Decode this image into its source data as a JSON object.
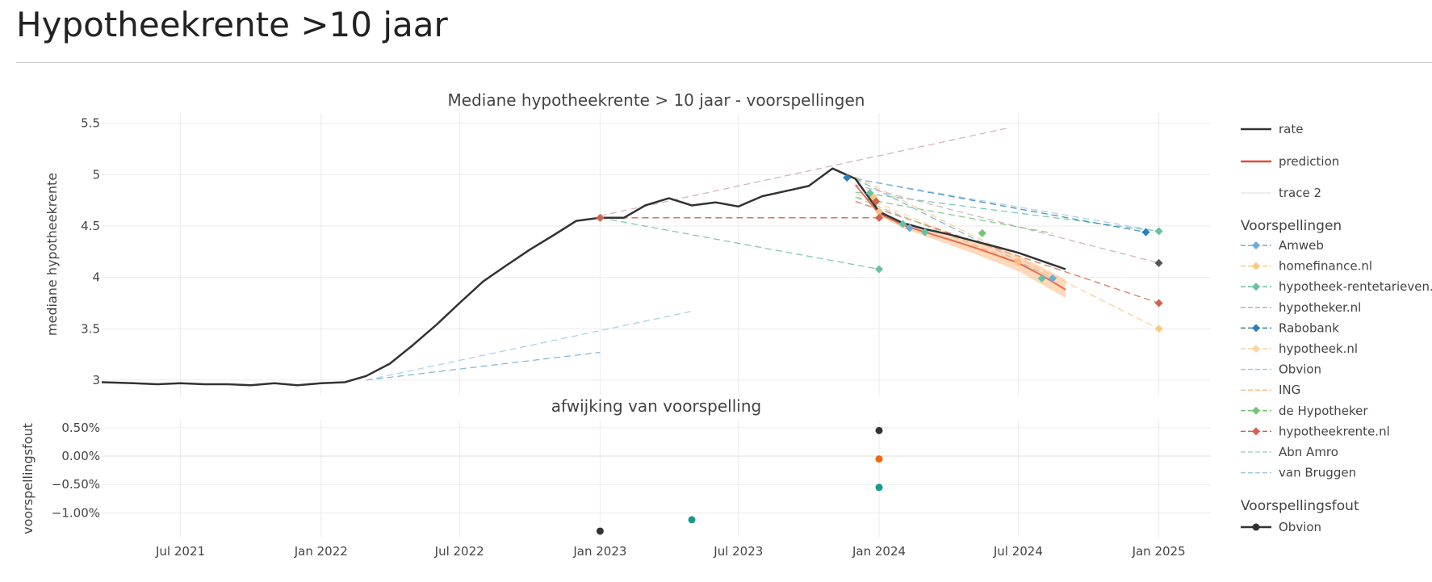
{
  "page": {
    "title": "Hypotheekrente >10 jaar"
  },
  "colors": {
    "rate": "#333333",
    "prediction": "#e34a33",
    "trace2": "#dcdcdc",
    "Amweb": "#6baed6",
    "homefinance.nl": "#f9c97c",
    "hypotheek-rentetarieven.nl": "#66c2a4",
    "hypotheker.nl": "#c9a9b0",
    "Rabobank": "#2c7fb8",
    "hypotheek.nl": "#fdd49e",
    "Obvion": "#9ecae1",
    "ING": "#fdbb84",
    "de Hypotheker": "#74c476",
    "hypotheekrente.nl": "#d6604d",
    "Abn Amro": "#a1d9c4",
    "van Bruggen": "#9ecae1",
    "err_black": "#333333",
    "err_orange": "#f16913",
    "err_teal": "#1a9a8c"
  },
  "chart_data": [
    {
      "type": "line",
      "title": "Mediane hypotheekrente > 10 jaar - voorspellingen",
      "ylabel": "mediane hypotheekrente",
      "xlabel": "",
      "ylim": [
        2.85,
        5.6
      ],
      "xlim": [
        "2021-03-20",
        "2025-03-10"
      ],
      "grid": true,
      "legend_position": "right",
      "x_ticks": [
        {
          "date": "2021-07-01",
          "label": "Jul 2021"
        },
        {
          "date": "2022-01-01",
          "label": "Jan 2022"
        },
        {
          "date": "2022-07-01",
          "label": "Jul 2022"
        },
        {
          "date": "2023-01-01",
          "label": "Jan 2023"
        },
        {
          "date": "2023-07-01",
          "label": "Jul 2023"
        },
        {
          "date": "2024-01-01",
          "label": "Jan 2024"
        },
        {
          "date": "2024-07-01",
          "label": "Jul 2024"
        },
        {
          "date": "2025-01-01",
          "label": "Jan 2025"
        }
      ],
      "y_ticks": [
        {
          "value": 3,
          "label": "3"
        },
        {
          "value": 3.5,
          "label": "3.5"
        },
        {
          "value": 4,
          "label": "4"
        },
        {
          "value": 4.5,
          "label": "4.5"
        },
        {
          "value": 5,
          "label": "5"
        },
        {
          "value": 5.5,
          "label": "5.5"
        }
      ],
      "rate": {
        "name": "rate",
        "x": [
          "2021-03-20",
          "2021-05-01",
          "2021-06-01",
          "2021-07-01",
          "2021-08-01",
          "2021-09-01",
          "2021-10-01",
          "2021-11-01",
          "2021-12-01",
          "2022-01-01",
          "2022-02-01",
          "2022-03-01",
          "2022-04-01",
          "2022-05-01",
          "2022-06-01",
          "2022-07-01",
          "2022-08-01",
          "2022-09-01",
          "2022-10-01",
          "2022-11-01",
          "2022-12-01",
          "2023-01-01",
          "2023-02-01",
          "2023-03-01",
          "2023-04-01",
          "2023-05-01",
          "2023-06-01",
          "2023-07-01",
          "2023-08-01",
          "2023-09-01",
          "2023-10-01",
          "2023-11-01",
          "2023-12-01",
          "2024-01-01",
          "2024-02-01",
          "2024-03-01",
          "2024-04-01",
          "2024-05-01",
          "2024-06-01",
          "2024-07-01",
          "2024-08-01",
          "2024-09-01"
        ],
        "y": [
          2.98,
          2.97,
          2.96,
          2.97,
          2.96,
          2.96,
          2.95,
          2.97,
          2.95,
          2.97,
          2.98,
          3.04,
          3.16,
          3.34,
          3.54,
          3.75,
          3.96,
          4.12,
          4.27,
          4.41,
          4.55,
          4.58,
          4.58,
          4.7,
          4.77,
          4.7,
          4.73,
          4.69,
          4.79,
          4.84,
          4.89,
          5.06,
          4.96,
          4.64,
          4.53,
          4.47,
          4.42,
          4.36,
          4.3,
          4.24,
          4.16,
          4.08
        ]
      },
      "prediction": {
        "name": "prediction",
        "x": [
          "2023-12-01",
          "2024-01-01",
          "2024-02-01",
          "2024-03-01",
          "2024-04-01",
          "2024-05-01",
          "2024-06-01",
          "2024-07-01",
          "2024-08-01",
          "2024-09-01"
        ],
        "y": [
          4.9,
          4.62,
          4.51,
          4.44,
          4.37,
          4.3,
          4.22,
          4.14,
          4.02,
          3.88
        ],
        "band_upper": [
          4.9,
          4.64,
          4.54,
          4.48,
          4.42,
          4.36,
          4.29,
          4.21,
          4.1,
          3.98
        ],
        "band_lower": [
          4.9,
          4.6,
          4.48,
          4.4,
          4.32,
          4.24,
          4.15,
          4.06,
          3.93,
          3.8
        ]
      },
      "trace2_label": "trace 2",
      "forecast_group_title": "Voorspellingen",
      "forecasts": [
        {
          "name": "Amweb",
          "segments": [
            {
              "x": [
                "2023-12-01",
                "2024-08-15"
              ],
              "y": [
                4.96,
                3.99
              ]
            },
            {
              "x": [
                "2022-03-01",
                "2023-01-01"
              ],
              "y": [
                3.0,
                3.27
              ]
            }
          ]
        },
        {
          "name": "homefinance.nl",
          "segments": [
            {
              "x": [
                "2023-12-01",
                "2025-01-01"
              ],
              "y": [
                4.98,
                3.5
              ]
            }
          ]
        },
        {
          "name": "hypotheek-rentetarieven.nl",
          "segments": [
            {
              "x": [
                "2023-01-01",
                "2024-01-01"
              ],
              "y": [
                4.58,
                4.08
              ]
            },
            {
              "x": [
                "2023-12-01",
                "2025-01-01"
              ],
              "y": [
                4.83,
                4.45
              ]
            }
          ]
        },
        {
          "name": "hypotheker.nl",
          "segments": [
            {
              "x": [
                "2023-01-01",
                "2024-06-15"
              ],
              "y": [
                4.6,
                5.45
              ]
            },
            {
              "x": [
                "2023-12-01",
                "2025-01-01"
              ],
              "y": [
                4.9,
                4.14
              ]
            }
          ]
        },
        {
          "name": "Rabobank",
          "segments": [
            {
              "x": [
                "2023-12-01",
                "2024-12-15"
              ],
              "y": [
                4.96,
                4.44
              ]
            }
          ]
        },
        {
          "name": "hypotheek.nl",
          "segments": [
            {
              "x": [
                "2023-12-01",
                "2024-04-01"
              ],
              "y": [
                4.82,
                4.43
              ]
            }
          ]
        },
        {
          "name": "Obvion",
          "segments": [
            {
              "x": [
                "2022-03-01",
                "2023-05-01"
              ],
              "y": [
                3.0,
                3.67
              ]
            }
          ]
        },
        {
          "name": "ING",
          "segments": [
            {
              "x": [
                "2023-12-01",
                "2024-07-01"
              ],
              "y": [
                4.78,
                4.15
              ]
            }
          ]
        },
        {
          "name": "de Hypotheker",
          "segments": [
            {
              "x": [
                "2023-01-01",
                "2024-01-01"
              ],
              "y": [
                4.58,
                4.58
              ]
            },
            {
              "x": [
                "2023-12-01",
                "2024-08-15"
              ],
              "y": [
                4.78,
                4.43
              ]
            }
          ]
        },
        {
          "name": "hypotheekrente.nl",
          "segments": [
            {
              "x": [
                "2023-01-01",
                "2024-01-01"
              ],
              "y": [
                4.58,
                4.58
              ]
            },
            {
              "x": [
                "2023-12-01",
                "2025-01-01"
              ],
              "y": [
                4.74,
                3.75
              ]
            }
          ]
        },
        {
          "name": "Abn Amro",
          "segments": [
            {
              "x": [
                "2023-12-01",
                "2024-08-15"
              ],
              "y": [
                4.78,
                4.0
              ]
            }
          ]
        },
        {
          "name": "van Bruggen",
          "segments": [
            {
              "x": [
                "2023-12-01",
                "2025-01-01"
              ],
              "y": [
                4.96,
                4.45
              ]
            }
          ]
        }
      ],
      "markers": [
        {
          "series": "hypotheek-rentetarieven.nl",
          "x": "2023-01-01",
          "y": 4.58
        },
        {
          "series": "hypotheekrente.nl",
          "x": "2023-01-01",
          "y": 4.58
        },
        {
          "series": "Rabobank",
          "x": "2023-11-20",
          "y": 4.97
        },
        {
          "series": "hypotheek-rentetarieven.nl",
          "x": "2023-12-20",
          "y": 4.82
        },
        {
          "series": "homefinance.nl",
          "x": "2023-12-25",
          "y": 4.78
        },
        {
          "series": "hypotheekrente.nl",
          "x": "2023-12-28",
          "y": 4.74
        },
        {
          "series": "ING",
          "x": "2024-01-01",
          "y": 4.64
        },
        {
          "series": "hypotheekrente.nl",
          "x": "2024-01-01",
          "y": 4.58
        },
        {
          "series": "hypotheek-rentetarieven.nl",
          "x": "2024-01-01",
          "y": 4.08
        },
        {
          "series": "hypotheek-rentetarieven.nl",
          "x": "2024-02-01",
          "y": 4.52
        },
        {
          "series": "Amweb",
          "x": "2024-02-10",
          "y": 4.48
        },
        {
          "series": "hypotheek-rentetarieven.nl",
          "x": "2024-03-01",
          "y": 4.44
        },
        {
          "series": "de Hypotheker",
          "x": "2024-05-15",
          "y": 4.43
        },
        {
          "series": "ING",
          "x": "2024-07-01",
          "y": 4.15
        },
        {
          "series": "hypotheek-rentetarieven.nl",
          "x": "2024-08-01",
          "y": 3.99
        },
        {
          "series": "Amweb",
          "x": "2024-08-15",
          "y": 3.99
        },
        {
          "series": "Rabobank",
          "x": "2024-12-15",
          "y": 4.44
        },
        {
          "series": "hypotheek-rentetarieven.nl",
          "x": "2025-01-01",
          "y": 4.45
        },
        {
          "series": "hypotheker.nl",
          "x": "2025-01-01",
          "y": 4.14,
          "color": "#555555"
        },
        {
          "series": "hypotheekrente.nl",
          "x": "2025-01-01",
          "y": 3.75
        },
        {
          "series": "homefinance.nl",
          "x": "2025-01-01",
          "y": 3.5
        }
      ]
    },
    {
      "type": "scatter",
      "title": "afwijking van voorspelling",
      "ylabel": "voorspellingsfout",
      "ylim": [
        -1.42,
        0.64
      ],
      "y_ticks": [
        {
          "value": 0.5,
          "label": "0.50%"
        },
        {
          "value": 0,
          "label": "0.00%"
        },
        {
          "value": -0.5,
          "label": "−0.50%"
        },
        {
          "value": -1,
          "label": "−1.00%"
        }
      ],
      "legend_title": "Voorspellingsfout",
      "legend_entry": "Obvion",
      "points": [
        {
          "x": "2023-01-01",
          "y": -1.32,
          "color": "err_black"
        },
        {
          "x": "2023-05-01",
          "y": -1.12,
          "color": "err_teal"
        },
        {
          "x": "2024-01-01",
          "y": 0.45,
          "color": "err_black"
        },
        {
          "x": "2024-01-01",
          "y": -0.05,
          "color": "err_orange"
        },
        {
          "x": "2024-01-01",
          "y": -0.55,
          "color": "err_teal"
        }
      ]
    }
  ],
  "legend": {
    "top": [
      "rate",
      "prediction",
      "trace 2"
    ],
    "forecast_entries": [
      "Amweb",
      "homefinance.nl",
      "hypotheek-rentetarieven.nl",
      "hypotheker.nl",
      "Rabobank",
      "hypotheek.nl",
      "Obvion",
      "ING",
      "de Hypotheker",
      "hypotheekrente.nl",
      "Abn Amro",
      "van Bruggen"
    ],
    "forecast_markers": [
      true,
      true,
      true,
      false,
      true,
      true,
      false,
      false,
      true,
      true,
      false,
      false
    ]
  }
}
